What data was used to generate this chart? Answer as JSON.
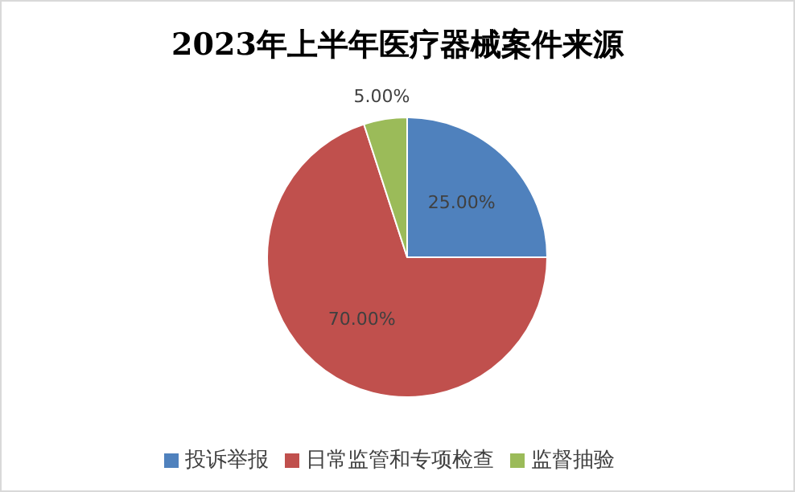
{
  "chart_data": {
    "type": "pie",
    "title": "2023年上半年医疗器械案件来源",
    "categories": [
      "投诉举报",
      "日常监管和专项检查",
      "监督抽验"
    ],
    "values": [
      25,
      70,
      5
    ],
    "colors": [
      "#4f81bd",
      "#c0504d",
      "#9bbb59"
    ],
    "value_labels": [
      "25.00%",
      "70.00%",
      "5.00%"
    ],
    "legend": "bottom"
  }
}
